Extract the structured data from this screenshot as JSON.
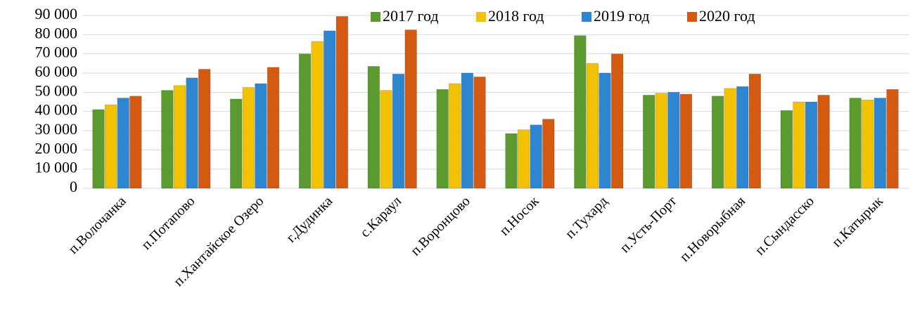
{
  "chart_data": {
    "type": "bar",
    "categories": [
      "п.Волочанка",
      "п.Потапово",
      "п.Хантайское Озеро",
      "г.Дудинка",
      "с.Караул",
      "п.Воронцово",
      "п.Носок",
      "п.Тухард",
      "п.Усть-Порт",
      "п.Новорыбная",
      "п.Сындасско",
      "п.Катырык"
    ],
    "series": [
      {
        "name": "2017 год",
        "color": "#5b9a2e",
        "values": [
          41000,
          51000,
          46500,
          70000,
          63500,
          51500,
          28500,
          79500,
          48500,
          48000,
          40500,
          47000
        ]
      },
      {
        "name": "2018 год",
        "color": "#f2c200",
        "values": [
          43500,
          53500,
          52500,
          76500,
          51000,
          54500,
          30500,
          65000,
          49500,
          52000,
          45000,
          46000
        ]
      },
      {
        "name": "2019 год",
        "color": "#2e86d1",
        "values": [
          47000,
          57500,
          54500,
          82000,
          59500,
          60000,
          33000,
          60000,
          50000,
          53000,
          45000,
          47000
        ]
      },
      {
        "name": "2020 год",
        "color": "#d45a12",
        "values": [
          48000,
          62000,
          63000,
          89500,
          82500,
          58000,
          36000,
          70000,
          49000,
          59500,
          48500,
          51500
        ]
      }
    ],
    "ylim": [
      0,
      90000
    ],
    "yticks": [
      0,
      {
        "value": 10000,
        "label": "10 000"
      },
      {
        "value": 20000,
        "label": "20 000"
      },
      {
        "value": 30000,
        "label": "30 000"
      },
      {
        "value": 40000,
        "label": "40 000"
      },
      {
        "value": 50000,
        "label": "50 000"
      },
      {
        "value": 60000,
        "label": "60 000"
      },
      {
        "value": 70000,
        "label": "70 000"
      },
      {
        "value": 80000,
        "label": "80 000"
      },
      {
        "value": 90000,
        "label": "90 000"
      }
    ],
    "grid": true,
    "legend": "top"
  }
}
